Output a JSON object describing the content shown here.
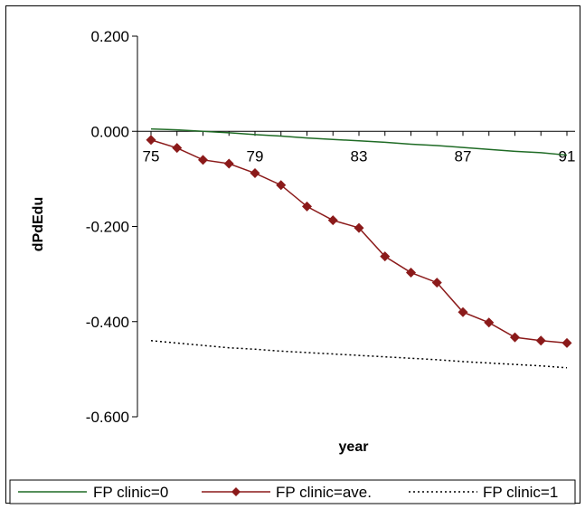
{
  "chart_data": {
    "type": "line",
    "title": "",
    "xlabel": "year",
    "ylabel": "dPdEdu",
    "x": [
      75,
      76,
      77,
      78,
      79,
      80,
      81,
      82,
      83,
      84,
      85,
      86,
      87,
      88,
      89,
      90,
      91
    ],
    "x_ticks": [
      "75",
      "79",
      "83",
      "87",
      "91"
    ],
    "y_ticks": [
      "0.200",
      "0.000",
      "-0.200",
      "-0.400",
      "-0.600"
    ],
    "ylim": [
      -0.6,
      0.2
    ],
    "xlim": [
      75,
      91
    ],
    "grid": false,
    "legend_position": "bottom",
    "series": [
      {
        "name": "FP clinic=0",
        "color": "#1f6b25",
        "style": "solid",
        "marker": "none",
        "values": [
          0.005,
          0.003,
          0.0,
          -0.003,
          -0.007,
          -0.01,
          -0.014,
          -0.017,
          -0.02,
          -0.023,
          -0.027,
          -0.03,
          -0.034,
          -0.038,
          -0.042,
          -0.045,
          -0.05
        ]
      },
      {
        "name": "FP clinic=ave.",
        "color": "#8b1a1a",
        "style": "solid",
        "marker": "diamond",
        "values": [
          -0.018,
          -0.035,
          -0.06,
          -0.068,
          -0.088,
          -0.113,
          -0.158,
          -0.187,
          -0.203,
          -0.263,
          -0.297,
          -0.318,
          -0.38,
          -0.402,
          -0.433,
          -0.44,
          -0.445
        ]
      },
      {
        "name": "FP clinic=1",
        "color": "#000000",
        "style": "dotted",
        "marker": "none",
        "values": [
          -0.44,
          -0.445,
          -0.45,
          -0.455,
          -0.458,
          -0.462,
          -0.465,
          -0.468,
          -0.471,
          -0.474,
          -0.477,
          -0.48,
          -0.484,
          -0.487,
          -0.49,
          -0.493,
          -0.497
        ]
      }
    ]
  }
}
